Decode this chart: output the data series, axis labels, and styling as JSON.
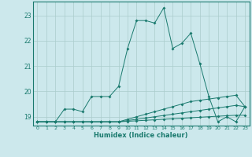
{
  "xlabel": "Humidex (Indice chaleur)",
  "background_color": "#cce8ec",
  "grid_color": "#aacccc",
  "line_color": "#1a7a6e",
  "xlim": [
    -0.5,
    23.5
  ],
  "ylim": [
    18.65,
    23.55
  ],
  "yticks": [
    19,
    20,
    21,
    22,
    23
  ],
  "xticks": [
    0,
    1,
    2,
    3,
    4,
    5,
    6,
    7,
    8,
    9,
    10,
    11,
    12,
    13,
    14,
    15,
    16,
    17,
    18,
    19,
    20,
    21,
    22,
    23
  ],
  "series": [
    [
      18.8,
      18.8,
      18.8,
      19.3,
      19.3,
      19.2,
      19.8,
      19.8,
      19.8,
      20.2,
      21.7,
      22.8,
      22.8,
      22.7,
      23.3,
      21.7,
      21.9,
      22.3,
      21.1,
      19.8,
      18.8,
      19.0,
      18.8,
      19.4
    ],
    [
      18.8,
      18.8,
      18.8,
      18.8,
      18.8,
      18.8,
      18.8,
      18.8,
      18.8,
      18.8,
      18.9,
      19.0,
      19.1,
      19.2,
      19.3,
      19.4,
      19.5,
      19.6,
      19.65,
      19.7,
      19.75,
      19.8,
      19.85,
      19.4
    ],
    [
      18.8,
      18.8,
      18.8,
      18.8,
      18.8,
      18.8,
      18.8,
      18.8,
      18.8,
      18.8,
      18.85,
      18.9,
      18.95,
      19.0,
      19.05,
      19.1,
      19.15,
      19.2,
      19.25,
      19.3,
      19.35,
      19.4,
      19.45,
      19.4
    ],
    [
      18.8,
      18.8,
      18.8,
      18.8,
      18.8,
      18.8,
      18.8,
      18.8,
      18.8,
      18.8,
      18.82,
      18.84,
      18.86,
      18.88,
      18.9,
      18.92,
      18.94,
      18.96,
      18.98,
      19.0,
      19.02,
      19.04,
      19.06,
      19.06
    ]
  ]
}
